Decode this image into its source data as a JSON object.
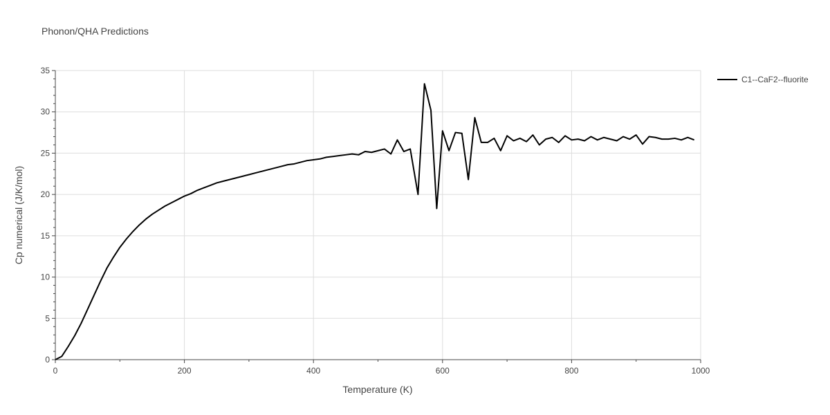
{
  "chart_data": {
    "type": "line",
    "title": "Phonon/QHA Predictions",
    "xlabel": "Temperature (K)",
    "ylabel": "Cp numerical (J/K/mol)",
    "xlim": [
      0,
      1000
    ],
    "ylim": [
      0,
      35
    ],
    "xticks": [
      0,
      200,
      400,
      600,
      800,
      1000
    ],
    "yticks": [
      0,
      5,
      10,
      15,
      20,
      25,
      30,
      35
    ],
    "grid": true,
    "legend_position": "top-right",
    "colors": {
      "series": "#000000",
      "grid": "#dddddd",
      "text": "#444444"
    },
    "series": [
      {
        "name": "C1--CaF2--fluorite",
        "x": [
          0,
          10,
          20,
          30,
          40,
          50,
          60,
          70,
          80,
          90,
          100,
          110,
          120,
          130,
          140,
          150,
          160,
          170,
          180,
          190,
          200,
          210,
          220,
          230,
          240,
          250,
          260,
          270,
          280,
          290,
          300,
          310,
          320,
          330,
          340,
          350,
          360,
          370,
          380,
          390,
          400,
          410,
          420,
          430,
          440,
          450,
          460,
          470,
          480,
          490,
          500,
          510,
          520,
          530,
          540,
          550,
          562,
          572,
          582,
          591,
          600,
          610,
          620,
          630,
          640,
          650,
          660,
          670,
          680,
          690,
          700,
          710,
          720,
          730,
          740,
          750,
          760,
          770,
          780,
          790,
          800,
          810,
          820,
          830,
          840,
          850,
          860,
          870,
          880,
          890,
          900,
          910,
          920,
          930,
          940,
          950,
          960,
          970,
          980,
          990
        ],
        "y": [
          0.0,
          0.4,
          1.6,
          2.9,
          4.4,
          6.1,
          7.8,
          9.5,
          11.1,
          12.4,
          13.6,
          14.6,
          15.5,
          16.3,
          17.0,
          17.6,
          18.1,
          18.6,
          19.0,
          19.4,
          19.8,
          20.1,
          20.5,
          20.8,
          21.1,
          21.4,
          21.6,
          21.8,
          22.0,
          22.2,
          22.4,
          22.6,
          22.8,
          23.0,
          23.2,
          23.4,
          23.6,
          23.7,
          23.9,
          24.1,
          24.2,
          24.3,
          24.5,
          24.6,
          24.7,
          24.8,
          24.9,
          24.8,
          25.2,
          25.1,
          25.3,
          25.5,
          24.9,
          26.6,
          25.2,
          25.5,
          20.0,
          33.4,
          30.2,
          18.3,
          27.7,
          25.3,
          27.5,
          27.4,
          21.8,
          29.3,
          26.3,
          26.3,
          26.8,
          25.3,
          27.1,
          26.5,
          26.8,
          26.4,
          27.2,
          26.0,
          26.7,
          26.9,
          26.3,
          27.1,
          26.6,
          26.7,
          26.5,
          27.0,
          26.6,
          26.9,
          26.7,
          26.5,
          27.0,
          26.7,
          27.2,
          26.1,
          27.0,
          26.9,
          26.7,
          26.7,
          26.8,
          26.6,
          26.9,
          26.6
        ]
      }
    ]
  }
}
